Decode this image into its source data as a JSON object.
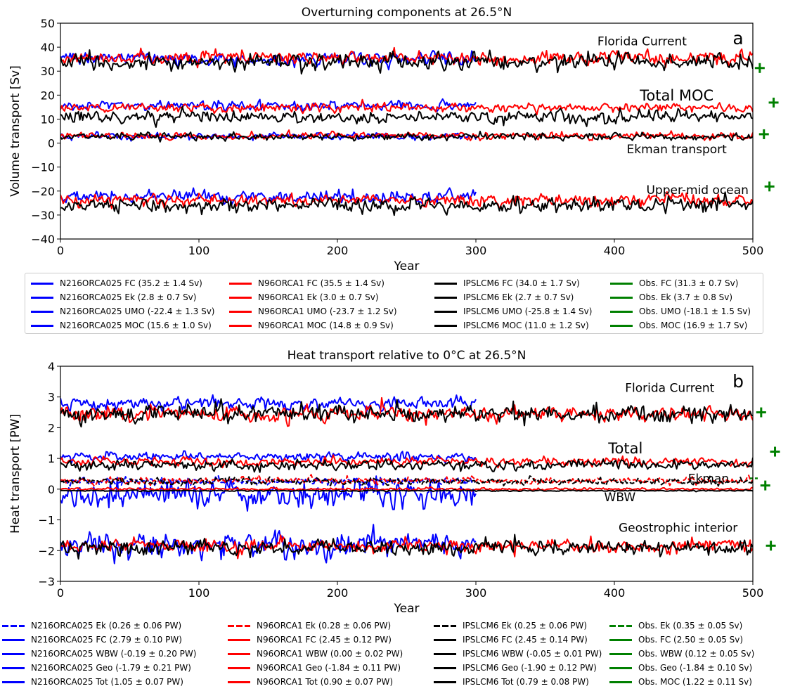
{
  "colors": {
    "N216ORCA025": "#0000ff",
    "N96ORCA1": "#ff0000",
    "IPSLCM6": "#000000",
    "Obs": "#008000"
  },
  "chart_data": [
    {
      "type": "line",
      "panel_letter": "a",
      "title": "Overturning components at 26.5$^\\circ$N",
      "xlabel": "Year",
      "ylabel": "Volume transport [Sv]",
      "xlim": [
        0,
        500
      ],
      "ylim": [
        -40,
        50
      ],
      "xticks": [
        0,
        100,
        200,
        300,
        400,
        500
      ],
      "yticks": [
        -40,
        -30,
        -20,
        -10,
        0,
        10,
        20,
        30,
        40,
        50
      ],
      "grid": false,
      "legend_position": "below",
      "annotations": [
        {
          "text": "Florida Current",
          "x": 420,
          "y": 42.5,
          "size": "medium"
        },
        {
          "text": "Total MOC",
          "x": 445,
          "y": 19.5,
          "size": "large"
        },
        {
          "text": "Ekman transport",
          "x": 445,
          "y": -2.5,
          "size": "medium"
        },
        {
          "text": "Upper-mid ocean",
          "x": 460,
          "y": -19.5,
          "size": "medium"
        }
      ],
      "series": [
        {
          "model": "N216ORCA025",
          "component": "FC",
          "mean": 35.2,
          "std": 1.4,
          "x_end": 300,
          "style": "solid"
        },
        {
          "model": "N216ORCA025",
          "component": "Ek",
          "mean": 2.8,
          "std": 0.7,
          "x_end": 300,
          "style": "solid"
        },
        {
          "model": "N216ORCA025",
          "component": "UMO",
          "mean": -22.4,
          "std": 1.3,
          "x_end": 300,
          "style": "solid"
        },
        {
          "model": "N216ORCA025",
          "component": "MOC",
          "mean": 15.6,
          "std": 1.0,
          "x_end": 300,
          "style": "solid"
        },
        {
          "model": "N96ORCA1",
          "component": "FC",
          "mean": 35.5,
          "std": 1.4,
          "x_end": 500,
          "style": "solid"
        },
        {
          "model": "N96ORCA1",
          "component": "Ek",
          "mean": 3.0,
          "std": 0.7,
          "x_end": 500,
          "style": "solid"
        },
        {
          "model": "N96ORCA1",
          "component": "UMO",
          "mean": -23.7,
          "std": 1.2,
          "x_end": 500,
          "style": "solid"
        },
        {
          "model": "N96ORCA1",
          "component": "MOC",
          "mean": 14.8,
          "std": 0.9,
          "x_end": 500,
          "style": "solid"
        },
        {
          "model": "IPSLCM6",
          "component": "FC",
          "mean": 34.0,
          "std": 1.7,
          "x_end": 500,
          "style": "solid"
        },
        {
          "model": "IPSLCM6",
          "component": "Ek",
          "mean": 2.7,
          "std": 0.7,
          "x_end": 500,
          "style": "solid"
        },
        {
          "model": "IPSLCM6",
          "component": "UMO",
          "mean": -25.8,
          "std": 1.4,
          "x_end": 500,
          "style": "solid"
        },
        {
          "model": "IPSLCM6",
          "component": "MOC",
          "mean": 11.0,
          "std": 1.2,
          "x_end": 500,
          "style": "solid"
        }
      ],
      "observations": [
        {
          "component": "FC",
          "x": 505,
          "y": 31.3
        },
        {
          "component": "Ek",
          "x": 508,
          "y": 3.7
        },
        {
          "component": "UMO",
          "x": 512,
          "y": -18.1
        },
        {
          "component": "MOC",
          "x": 515,
          "y": 16.9
        }
      ],
      "legend_columns": [
        {
          "color": "N216ORCA025",
          "style": "solid",
          "labels": [
            "N216ORCA025 FC (35.2 ± 1.4 Sv)",
            "N216ORCA025 Ek (2.8 ± 0.7 Sv)",
            "N216ORCA025 UMO (-22.4 ± 1.3 Sv)",
            "N216ORCA025 MOC (15.6 ± 1.0 Sv)"
          ]
        },
        {
          "color": "N96ORCA1",
          "style": "solid",
          "labels": [
            "N96ORCA1 FC (35.5 ± 1.4 Sv)",
            "N96ORCA1 Ek (3.0 ± 0.7 Sv)",
            "N96ORCA1 UMO (-23.7 ± 1.2 Sv)",
            "N96ORCA1 MOC (14.8 ± 0.9 Sv)"
          ]
        },
        {
          "color": "IPSLCM6",
          "style": "solid",
          "labels": [
            "IPSLCM6 FC (34.0 ± 1.7 Sv)",
            "IPSLCM6 Ek (2.7 ± 0.7 Sv)",
            "IPSLCM6 UMO (-25.8 ± 1.4 Sv)",
            "IPSLCM6 MOC (11.0 ± 1.2 Sv)"
          ]
        },
        {
          "color": "Obs",
          "style": "solid",
          "labels": [
            "Obs. FC (31.3 ± 0.7 Sv)",
            "Obs. Ek (3.7 ± 0.8 Sv)",
            "Obs. UMO (-18.1 ± 1.5 Sv)",
            "Obs. MOC (16.9 ± 1.7 Sv)"
          ]
        }
      ]
    },
    {
      "type": "line",
      "panel_letter": "b",
      "title": "Heat transport relative to 0$^\\circ$C at 26.5$^\\circ$N",
      "xlabel": "Year",
      "ylabel": "Heat transport [PW]",
      "xlim": [
        0,
        500
      ],
      "ylim": [
        -3,
        4
      ],
      "xticks": [
        0,
        100,
        200,
        300,
        400,
        500
      ],
      "yticks": [
        -3,
        -2,
        -1,
        0,
        1,
        2,
        3,
        4
      ],
      "grid": false,
      "legend_position": "below",
      "annotations": [
        {
          "text": "Florida Current",
          "x": 440,
          "y": 3.3,
          "size": "medium"
        },
        {
          "text": "Total",
          "x": 408,
          "y": 1.3,
          "size": "large"
        },
        {
          "text": "Ekman",
          "x": 468,
          "y": 0.35,
          "size": "medium"
        },
        {
          "text": "WBW",
          "x": 404,
          "y": -0.25,
          "size": "medium"
        },
        {
          "text": "Geostrophic interior",
          "x": 446,
          "y": -1.25,
          "size": "medium"
        }
      ],
      "series": [
        {
          "model": "N216ORCA025",
          "component": "Ek",
          "mean": 0.26,
          "std": 0.06,
          "x_end": 300,
          "style": "dashed"
        },
        {
          "model": "N216ORCA025",
          "component": "FC",
          "mean": 2.79,
          "std": 0.1,
          "x_end": 300,
          "style": "solid"
        },
        {
          "model": "N216ORCA025",
          "component": "WBW",
          "mean": -0.19,
          "std": 0.2,
          "x_end": 300,
          "style": "solid"
        },
        {
          "model": "N216ORCA025",
          "component": "Geo",
          "mean": -1.79,
          "std": 0.21,
          "x_end": 300,
          "style": "solid"
        },
        {
          "model": "N216ORCA025",
          "component": "Tot",
          "mean": 1.05,
          "std": 0.07,
          "x_end": 300,
          "style": "solid"
        },
        {
          "model": "N96ORCA1",
          "component": "Ek",
          "mean": 0.28,
          "std": 0.06,
          "x_end": 500,
          "style": "dashed"
        },
        {
          "model": "N96ORCA1",
          "component": "FC",
          "mean": 2.45,
          "std": 0.12,
          "x_end": 500,
          "style": "solid"
        },
        {
          "model": "N96ORCA1",
          "component": "WBW",
          "mean": 0.0,
          "std": 0.02,
          "x_end": 500,
          "style": "solid"
        },
        {
          "model": "N96ORCA1",
          "component": "Geo",
          "mean": -1.84,
          "std": 0.11,
          "x_end": 500,
          "style": "solid"
        },
        {
          "model": "N96ORCA1",
          "component": "Tot",
          "mean": 0.9,
          "std": 0.07,
          "x_end": 500,
          "style": "solid"
        },
        {
          "model": "IPSLCM6",
          "component": "Ek",
          "mean": 0.25,
          "std": 0.06,
          "x_end": 500,
          "style": "dashed"
        },
        {
          "model": "IPSLCM6",
          "component": "FC",
          "mean": 2.45,
          "std": 0.14,
          "x_end": 500,
          "style": "solid"
        },
        {
          "model": "IPSLCM6",
          "component": "WBW",
          "mean": -0.05,
          "std": 0.01,
          "x_end": 500,
          "style": "solid"
        },
        {
          "model": "IPSLCM6",
          "component": "Geo",
          "mean": -1.9,
          "std": 0.12,
          "x_end": 500,
          "style": "solid"
        },
        {
          "model": "IPSLCM6",
          "component": "Tot",
          "mean": 0.79,
          "std": 0.08,
          "x_end": 500,
          "style": "solid"
        }
      ],
      "observations": [
        {
          "component": "Ek",
          "x": 501,
          "y": 0.35,
          "style": "dashed"
        },
        {
          "component": "FC",
          "x": 506,
          "y": 2.5
        },
        {
          "component": "WBW",
          "x": 509,
          "y": 0.12
        },
        {
          "component": "Geo",
          "x": 513,
          "y": -1.84
        },
        {
          "component": "MOC",
          "x": 516,
          "y": 1.22
        }
      ],
      "legend_columns": [
        {
          "color": "N216ORCA025",
          "styles": [
            "dashed",
            "solid",
            "solid",
            "solid",
            "solid"
          ],
          "labels": [
            "N216ORCA025 Ek (0.26 ± 0.06 PW)",
            "N216ORCA025 FC (2.79 ± 0.10 PW)",
            "N216ORCA025 WBW (-0.19 ± 0.20 PW)",
            "N216ORCA025 Geo (-1.79 ± 0.21 PW)",
            "N216ORCA025 Tot (1.05 ± 0.07 PW)"
          ]
        },
        {
          "color": "N96ORCA1",
          "styles": [
            "dashed",
            "solid",
            "solid",
            "solid",
            "solid"
          ],
          "labels": [
            "N96ORCA1 Ek (0.28 ± 0.06 PW)",
            "N96ORCA1 FC (2.45 ± 0.12 PW)",
            "N96ORCA1 WBW (0.00 ± 0.02 PW)",
            "N96ORCA1 Geo (-1.84 ± 0.11 PW)",
            "N96ORCA1 Tot (0.90 ± 0.07 PW)"
          ]
        },
        {
          "color": "IPSLCM6",
          "styles": [
            "dashed",
            "solid",
            "solid",
            "solid",
            "solid"
          ],
          "labels": [
            "IPSLCM6 Ek (0.25 ± 0.06 PW)",
            "IPSLCM6 FC (2.45 ± 0.14 PW)",
            "IPSLCM6 WBW (-0.05 ± 0.01 PW)",
            "IPSLCM6 Geo (-1.90 ± 0.12 PW)",
            "IPSLCM6 Tot (0.79 ± 0.08 PW)"
          ]
        },
        {
          "color": "Obs",
          "styles": [
            "dashed",
            "solid",
            "solid",
            "solid",
            "solid"
          ],
          "labels": [
            "Obs. Ek (0.35 ± 0.05 Sv)",
            "Obs. FC (2.50 ± 0.05 Sv)",
            "Obs. WBW (0.12 ± 0.05 Sv)",
            "Obs. Geo (-1.84 ± 0.10 Sv)",
            "Obs. MOC (1.22 ± 0.11 Sv)"
          ]
        }
      ]
    }
  ]
}
